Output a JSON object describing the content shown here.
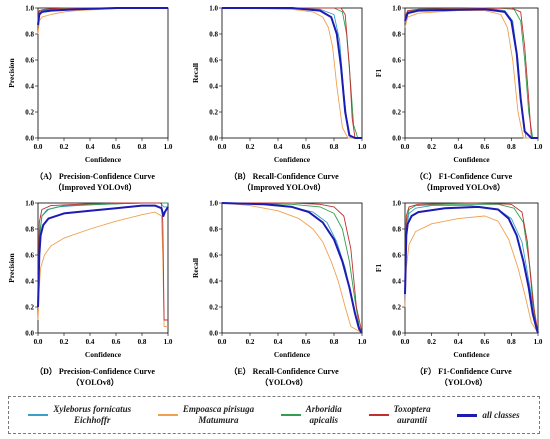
{
  "colors": {
    "Xyleborus fornicatus Eichhoffr": "#3aa0c8",
    "Empoasca pirisuga Matumura": "#f0a050",
    "Arboridia apicalis": "#30a050",
    "Toxoptera aurantii": "#c03030",
    "all classes": "#1c1cb4"
  },
  "legend": {
    "items": [
      {
        "line1": "Xyleborus fornicatus",
        "line2": "Eichhoffr",
        "color": "#3aa0c8",
        "thick": false
      },
      {
        "line1": "Empoasca pirisuga",
        "line2": "Matumura",
        "color": "#f0a050",
        "thick": false
      },
      {
        "line1": "Arboridia",
        "line2": "apicalis",
        "color": "#30a050",
        "thick": false
      },
      {
        "line1": "Toxoptera",
        "line2": "aurantii",
        "color": "#c03030",
        "thick": false
      },
      {
        "line1": "all classes",
        "line2": "",
        "color": "#1c1cb4",
        "thick": true
      }
    ]
  },
  "chart_data": [
    {
      "type": "line",
      "caption1": "（A） Precision-Confidence Curve",
      "caption2": "（Improved YOLOv8）",
      "xlabel": "Confidence",
      "ylabel": "Precision",
      "xlim": [
        0,
        1
      ],
      "ylim": [
        0,
        1
      ],
      "xticks": [
        "0.0",
        "0.2",
        "0.4",
        "0.6",
        "0.8",
        "1.0"
      ],
      "yticks": [
        "0.0",
        "0.2",
        "0.4",
        "0.6",
        "0.8",
        "1.0"
      ],
      "series": [
        {
          "name": "Xyleborus fornicatus Eichhoffr",
          "x": [
            0,
            0.01,
            0.03,
            0.1,
            0.3,
            0.6,
            1
          ],
          "y": [
            0.9,
            0.97,
            0.98,
            0.99,
            1,
            1,
            1
          ]
        },
        {
          "name": "Empoasca pirisuga Matumura",
          "x": [
            0,
            0.01,
            0.03,
            0.1,
            0.2,
            0.3,
            0.5,
            0.7,
            1
          ],
          "y": [
            0.8,
            0.9,
            0.93,
            0.95,
            0.97,
            0.98,
            0.99,
            1,
            1
          ]
        },
        {
          "name": "Arboridia apicalis",
          "x": [
            0,
            0.01,
            0.05,
            0.15,
            0.3,
            1
          ],
          "y": [
            0.88,
            0.96,
            0.98,
            0.99,
            1,
            1
          ]
        },
        {
          "name": "Toxoptera aurantii",
          "x": [
            0,
            0.01,
            0.05,
            0.2,
            1
          ],
          "y": [
            0.92,
            0.98,
            0.99,
            1,
            1
          ]
        },
        {
          "name": "all classes",
          "x": [
            0,
            0.01,
            0.03,
            0.1,
            0.3,
            0.6,
            1
          ],
          "y": [
            0.87,
            0.95,
            0.97,
            0.98,
            0.99,
            1,
            1
          ]
        }
      ]
    },
    {
      "type": "line",
      "caption1": "（B） Recall-Confidence Curve",
      "caption2": "（Improved YOLOv8）",
      "xlabel": "Confidence",
      "ylabel": "Recall",
      "xlim": [
        0,
        1
      ],
      "ylim": [
        0,
        1
      ],
      "xticks": [
        "0.0",
        "0.2",
        "0.4",
        "0.6",
        "0.8",
        "1.0"
      ],
      "yticks": [
        "0.0",
        "0.2",
        "0.4",
        "0.6",
        "0.8",
        "1.0"
      ],
      "series": [
        {
          "name": "Xyleborus fornicatus Eichhoffr",
          "x": [
            0,
            0.5,
            0.7,
            0.8,
            0.84,
            0.87,
            0.9,
            0.92,
            1
          ],
          "y": [
            1,
            1,
            0.99,
            0.95,
            0.75,
            0.35,
            0.05,
            0,
            0
          ]
        },
        {
          "name": "Empoasca pirisuga Matumura",
          "x": [
            0,
            0.5,
            0.65,
            0.72,
            0.76,
            0.79,
            0.82,
            0.86,
            0.9,
            1
          ],
          "y": [
            1,
            0.99,
            0.97,
            0.93,
            0.85,
            0.7,
            0.4,
            0.08,
            0,
            0
          ]
        },
        {
          "name": "Arboridia apicalis",
          "x": [
            0,
            0.8,
            0.86,
            0.89,
            0.92,
            0.94,
            0.97,
            1
          ],
          "y": [
            1,
            1,
            0.97,
            0.8,
            0.4,
            0.1,
            0,
            0
          ]
        },
        {
          "name": "Toxoptera aurantii",
          "x": [
            0,
            0.85,
            0.88,
            0.91,
            0.93,
            0.95,
            1
          ],
          "y": [
            1,
            1,
            0.95,
            0.55,
            0.15,
            0,
            0
          ]
        },
        {
          "name": "all classes",
          "x": [
            0,
            0.5,
            0.7,
            0.78,
            0.82,
            0.85,
            0.88,
            0.91,
            0.95,
            1
          ],
          "y": [
            1,
            1,
            0.98,
            0.93,
            0.8,
            0.55,
            0.2,
            0.02,
            0,
            0
          ]
        }
      ]
    },
    {
      "type": "line",
      "caption1": "（C） F1-Confidence Curve",
      "caption2": "（Improved YOLOv8）",
      "xlabel": "Confidence",
      "ylabel": "F1",
      "xlim": [
        0,
        1
      ],
      "ylim": [
        0,
        1
      ],
      "xticks": [
        "0.0",
        "0.2",
        "0.4",
        "0.6",
        "0.8",
        "1.0"
      ],
      "yticks": [
        "0.0",
        "0.2",
        "0.4",
        "0.6",
        "0.8",
        "1.0"
      ],
      "series": [
        {
          "name": "Xyleborus fornicatus Eichhoffr",
          "x": [
            0,
            0.02,
            0.1,
            0.6,
            0.75,
            0.81,
            0.85,
            0.88,
            0.91,
            1
          ],
          "y": [
            0.9,
            0.97,
            0.99,
            1,
            0.98,
            0.9,
            0.6,
            0.2,
            0,
            0
          ]
        },
        {
          "name": "Empoasca pirisuga Matumura",
          "x": [
            0,
            0.02,
            0.1,
            0.4,
            0.6,
            0.72,
            0.77,
            0.81,
            0.85,
            0.89,
            1
          ],
          "y": [
            0.85,
            0.93,
            0.96,
            0.98,
            0.98,
            0.95,
            0.85,
            0.6,
            0.2,
            0,
            0
          ]
        },
        {
          "name": "Arboridia apicalis",
          "x": [
            0,
            0.02,
            0.1,
            0.7,
            0.82,
            0.87,
            0.9,
            0.93,
            0.96,
            1
          ],
          "y": [
            0.9,
            0.97,
            0.99,
            1,
            0.99,
            0.9,
            0.6,
            0.2,
            0,
            0
          ]
        },
        {
          "name": "Toxoptera aurantii",
          "x": [
            0,
            0.02,
            0.1,
            0.8,
            0.87,
            0.9,
            0.93,
            0.95,
            1
          ],
          "y": [
            0.93,
            0.98,
            0.99,
            1,
            0.97,
            0.7,
            0.3,
            0,
            0
          ]
        },
        {
          "name": "all classes",
          "x": [
            0,
            0.02,
            0.1,
            0.6,
            0.75,
            0.8,
            0.84,
            0.87,
            0.9,
            0.95,
            1
          ],
          "y": [
            0.9,
            0.96,
            0.98,
            0.99,
            0.97,
            0.9,
            0.65,
            0.3,
            0.05,
            0,
            0
          ]
        }
      ]
    },
    {
      "type": "line",
      "caption1": "（D） Precision-Confidence Curve",
      "caption2": "（YOLOv8）",
      "xlabel": "Confidence",
      "ylabel": "Precision",
      "xlim": [
        0,
        1
      ],
      "ylim": [
        0,
        1
      ],
      "xticks": [
        "0.0",
        "0.2",
        "0.4",
        "0.6",
        "0.8",
        "1.0"
      ],
      "yticks": [
        "0.0",
        "0.2",
        "0.4",
        "0.6",
        "0.8",
        "1.0"
      ],
      "series": [
        {
          "name": "Xyleborus fornicatus Eichhoffr",
          "x": [
            0,
            0.01,
            0.03,
            0.07,
            0.15,
            0.3,
            0.5,
            0.8,
            0.94,
            0.97,
            1
          ],
          "y": [
            0.2,
            0.7,
            0.9,
            0.95,
            0.97,
            0.98,
            0.99,
            1,
            1,
            0.97,
            0.97
          ]
        },
        {
          "name": "Empoasca pirisuga Matumura",
          "x": [
            0,
            0.01,
            0.02,
            0.05,
            0.1,
            0.2,
            0.4,
            0.6,
            0.8,
            0.9,
            0.95,
            0.96,
            0.97,
            1
          ],
          "y": [
            0.1,
            0.35,
            0.5,
            0.6,
            0.67,
            0.73,
            0.8,
            0.86,
            0.91,
            0.93,
            0.9,
            0.6,
            0.05,
            0.05
          ]
        },
        {
          "name": "Arboridia apicalis",
          "x": [
            0,
            0.01,
            0.03,
            0.08,
            0.2,
            0.5,
            0.8,
            1
          ],
          "y": [
            0.3,
            0.75,
            0.9,
            0.95,
            0.98,
            0.99,
            1,
            1
          ]
        },
        {
          "name": "Toxoptera aurantii",
          "x": [
            0,
            0.01,
            0.03,
            0.1,
            0.3,
            0.6,
            0.95,
            0.96,
            0.97,
            1
          ],
          "y": [
            0.2,
            0.85,
            0.95,
            0.98,
            0.99,
            1,
            1,
            0.85,
            0.1,
            0.1
          ]
        },
        {
          "name": "all classes",
          "x": [
            0,
            0.01,
            0.02,
            0.04,
            0.08,
            0.2,
            0.4,
            0.6,
            0.8,
            0.9,
            0.95,
            0.965,
            0.975,
            1
          ],
          "y": [
            0.2,
            0.6,
            0.75,
            0.83,
            0.88,
            0.92,
            0.94,
            0.96,
            0.98,
            0.98,
            0.96,
            0.9,
            0.93,
            0.97
          ]
        }
      ]
    },
    {
      "type": "line",
      "caption1": "（E） Recall-Confidence Curve",
      "caption2": "（YOLOv8）",
      "xlabel": "Confidence",
      "ylabel": "Recall",
      "xlim": [
        0,
        1
      ],
      "ylim": [
        0,
        1
      ],
      "xticks": [
        "0.0",
        "0.2",
        "0.4",
        "0.6",
        "0.8",
        "1.0"
      ],
      "yticks": [
        "0.0",
        "0.2",
        "0.4",
        "0.6",
        "0.8",
        "1.0"
      ],
      "series": [
        {
          "name": "Xyleborus fornicatus Eichhoffr",
          "x": [
            0,
            0.3,
            0.5,
            0.65,
            0.75,
            0.82,
            0.88,
            0.93,
            0.97,
            1
          ],
          "y": [
            1,
            0.99,
            0.97,
            0.93,
            0.85,
            0.7,
            0.5,
            0.25,
            0.05,
            0
          ]
        },
        {
          "name": "Empoasca pirisuga Matumura",
          "x": [
            0,
            0.2,
            0.4,
            0.55,
            0.65,
            0.72,
            0.78,
            0.83,
            0.88,
            0.92,
            1
          ],
          "y": [
            1,
            0.98,
            0.94,
            0.88,
            0.8,
            0.7,
            0.55,
            0.4,
            0.2,
            0.05,
            0
          ]
        },
        {
          "name": "Arboridia apicalis",
          "x": [
            0,
            0.5,
            0.7,
            0.8,
            0.86,
            0.91,
            0.95,
            0.98,
            1
          ],
          "y": [
            1,
            0.99,
            0.97,
            0.92,
            0.8,
            0.55,
            0.25,
            0.05,
            0
          ]
        },
        {
          "name": "Toxoptera aurantii",
          "x": [
            0,
            0.5,
            0.7,
            0.8,
            0.87,
            0.92,
            0.96,
            1
          ],
          "y": [
            1,
            1,
            0.99,
            0.97,
            0.9,
            0.65,
            0.2,
            0
          ]
        },
        {
          "name": "all classes",
          "x": [
            0,
            0.3,
            0.5,
            0.62,
            0.72,
            0.8,
            0.86,
            0.91,
            0.95,
            0.98,
            1
          ],
          "y": [
            1,
            0.99,
            0.97,
            0.93,
            0.85,
            0.72,
            0.55,
            0.35,
            0.15,
            0.03,
            0
          ]
        }
      ]
    },
    {
      "type": "line",
      "caption1": "（F） F1-Confidence Curve",
      "caption2": "（YOLOv8）",
      "xlabel": "Confidence",
      "ylabel": "F1",
      "xlim": [
        0,
        1
      ],
      "ylim": [
        0,
        1
      ],
      "xticks": [
        "0.0",
        "0.2",
        "0.4",
        "0.6",
        "0.8",
        "1.0"
      ],
      "yticks": [
        "0.0",
        "0.2",
        "0.4",
        "0.6",
        "0.8",
        "1.0"
      ],
      "series": [
        {
          "name": "Xyleborus fornicatus Eichhoffr",
          "x": [
            0,
            0.01,
            0.03,
            0.08,
            0.2,
            0.5,
            0.7,
            0.8,
            0.88,
            0.94,
            0.98,
            1
          ],
          "y": [
            0.3,
            0.8,
            0.92,
            0.96,
            0.98,
            0.98,
            0.95,
            0.88,
            0.7,
            0.35,
            0.08,
            0
          ]
        },
        {
          "name": "Empoasca pirisuga Matumura",
          "x": [
            0,
            0.01,
            0.03,
            0.08,
            0.2,
            0.4,
            0.6,
            0.7,
            0.78,
            0.85,
            0.9,
            0.95,
            1
          ],
          "y": [
            0.2,
            0.5,
            0.68,
            0.78,
            0.84,
            0.88,
            0.9,
            0.86,
            0.72,
            0.5,
            0.3,
            0.08,
            0
          ]
        },
        {
          "name": "Arboridia apicalis",
          "x": [
            0,
            0.01,
            0.03,
            0.08,
            0.3,
            0.7,
            0.82,
            0.89,
            0.94,
            0.98,
            1
          ],
          "y": [
            0.4,
            0.85,
            0.95,
            0.98,
            0.99,
            0.99,
            0.96,
            0.85,
            0.5,
            0.1,
            0
          ]
        },
        {
          "name": "Toxoptera aurantii",
          "x": [
            0,
            0.01,
            0.03,
            0.1,
            0.5,
            0.8,
            0.88,
            0.92,
            0.96,
            1
          ],
          "y": [
            0.3,
            0.9,
            0.97,
            0.99,
            1,
            0.99,
            0.93,
            0.7,
            0.25,
            0
          ]
        },
        {
          "name": "all classes",
          "x": [
            0,
            0.01,
            0.02,
            0.05,
            0.1,
            0.3,
            0.55,
            0.7,
            0.78,
            0.84,
            0.89,
            0.93,
            0.96,
            0.99,
            1
          ],
          "y": [
            0.3,
            0.75,
            0.84,
            0.9,
            0.93,
            0.96,
            0.97,
            0.95,
            0.88,
            0.75,
            0.55,
            0.35,
            0.15,
            0.03,
            0
          ]
        }
      ]
    }
  ]
}
